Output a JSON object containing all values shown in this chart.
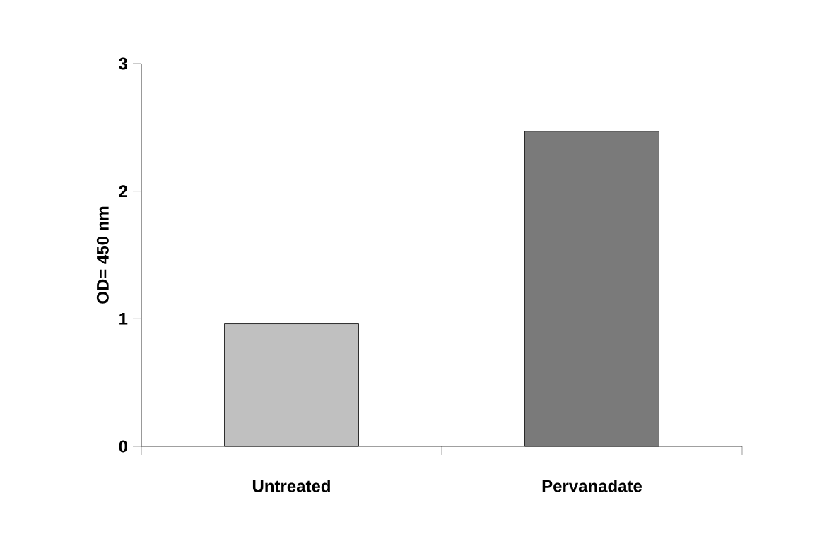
{
  "chart_data": {
    "type": "bar",
    "categories": [
      "Untreated",
      "Pervanadate"
    ],
    "values": [
      0.96,
      2.47
    ],
    "colors": [
      "#c0c0c0",
      "#7a7a7a"
    ],
    "ylabel": "OD= 450 nm",
    "ylim": [
      0,
      3
    ],
    "yticks": [
      0,
      1,
      2,
      3
    ]
  }
}
